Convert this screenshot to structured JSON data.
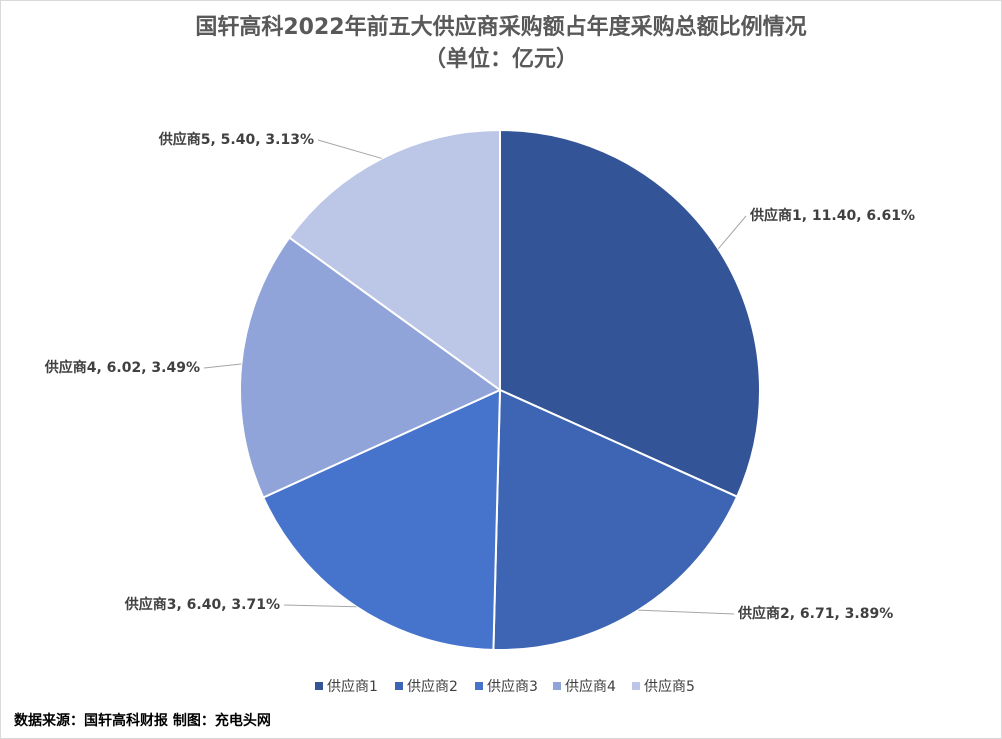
{
  "chart_data": {
    "type": "pie",
    "title": "国轩高科2022年前五大供应商采购额占年度采购总额比例情况",
    "subtitle": "（单位：亿元）",
    "categories": [
      "供应商1",
      "供应商2",
      "供应商3",
      "供应商4",
      "供应商5"
    ],
    "values": [
      11.4,
      6.71,
      6.4,
      6.02,
      5.4
    ],
    "value_labels": [
      "供应商1, 11.40, 6.61%",
      "供应商2, 6.71, 3.89%",
      "供应商3, 6.40, 3.71%",
      "供应商4, 6.02, 3.49%",
      "供应商5, 5.40, 3.13%"
    ],
    "colors": [
      "#335496",
      "#3e65b3",
      "#4673cc",
      "#91a4d9",
      "#bcc6e6"
    ],
    "legend": "bottom",
    "source": "数据来源：国轩高科财报 制图：充电头网"
  }
}
